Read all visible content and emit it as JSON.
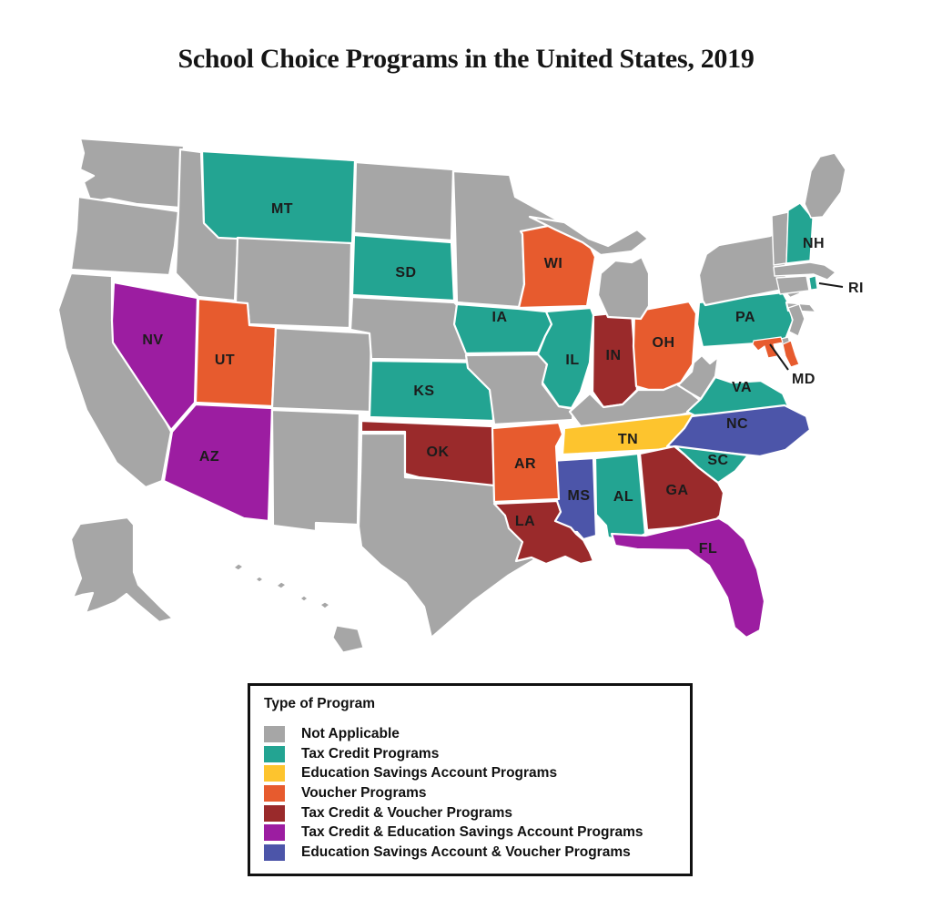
{
  "title": "School Choice Programs in the United States, 2019",
  "legend": {
    "title": "Type of Program",
    "items": [
      {
        "key": "na",
        "label": "Not Applicable",
        "color": "#A6A6A6"
      },
      {
        "key": "tc",
        "label": "Tax Credit Programs",
        "color": "#23A492"
      },
      {
        "key": "esa",
        "label": "Education Savings Account Programs",
        "color": "#FDC42E"
      },
      {
        "key": "voucher",
        "label": "Voucher Programs",
        "color": "#E75B2E"
      },
      {
        "key": "tc_voucher",
        "label": "Tax Credit & Voucher Programs",
        "color": "#9A2A2B"
      },
      {
        "key": "tc_esa",
        "label": "Tax Credit & Education Savings Account Programs",
        "color": "#9C1DA1"
      },
      {
        "key": "esa_voucher",
        "label": "Education Savings Account & Voucher Programs",
        "color": "#4C55A9"
      }
    ]
  },
  "map": {
    "border_color": "#FFFFFF",
    "states": [
      {
        "abbr": "WA",
        "program": "na",
        "label": ""
      },
      {
        "abbr": "OR",
        "program": "na",
        "label": ""
      },
      {
        "abbr": "CA",
        "program": "na",
        "label": ""
      },
      {
        "abbr": "ID",
        "program": "na",
        "label": ""
      },
      {
        "abbr": "MT",
        "program": "tc",
        "label": "MT"
      },
      {
        "abbr": "WY",
        "program": "na",
        "label": ""
      },
      {
        "abbr": "NV",
        "program": "tc_esa",
        "label": "NV"
      },
      {
        "abbr": "UT",
        "program": "voucher",
        "label": "UT"
      },
      {
        "abbr": "AZ",
        "program": "tc_esa",
        "label": "AZ"
      },
      {
        "abbr": "CO",
        "program": "na",
        "label": ""
      },
      {
        "abbr": "NM",
        "program": "na",
        "label": ""
      },
      {
        "abbr": "TX",
        "program": "na",
        "label": ""
      },
      {
        "abbr": "ND",
        "program": "na",
        "label": ""
      },
      {
        "abbr": "SD",
        "program": "tc",
        "label": "SD"
      },
      {
        "abbr": "NE",
        "program": "na",
        "label": ""
      },
      {
        "abbr": "KS",
        "program": "tc",
        "label": "KS"
      },
      {
        "abbr": "OK",
        "program": "tc_voucher",
        "label": "OK"
      },
      {
        "abbr": "MN",
        "program": "na",
        "label": ""
      },
      {
        "abbr": "IA",
        "program": "tc",
        "label": "IA"
      },
      {
        "abbr": "MO",
        "program": "na",
        "label": ""
      },
      {
        "abbr": "WI",
        "program": "voucher",
        "label": "WI"
      },
      {
        "abbr": "IL",
        "program": "tc",
        "label": "IL"
      },
      {
        "abbr": "IN",
        "program": "tc_voucher",
        "label": "IN"
      },
      {
        "abbr": "OH",
        "program": "voucher",
        "label": "OH"
      },
      {
        "abbr": "MI",
        "program": "na",
        "label": ""
      },
      {
        "abbr": "KY",
        "program": "na",
        "label": ""
      },
      {
        "abbr": "TN",
        "program": "esa",
        "label": "TN"
      },
      {
        "abbr": "WV",
        "program": "na",
        "label": ""
      },
      {
        "abbr": "VA",
        "program": "tc",
        "label": "VA"
      },
      {
        "abbr": "NC",
        "program": "esa_voucher",
        "label": "NC"
      },
      {
        "abbr": "SC",
        "program": "tc",
        "label": "SC"
      },
      {
        "abbr": "GA",
        "program": "tc_voucher",
        "label": "GA"
      },
      {
        "abbr": "AL",
        "program": "tc",
        "label": "AL"
      },
      {
        "abbr": "MS",
        "program": "esa_voucher",
        "label": "MS"
      },
      {
        "abbr": "AR",
        "program": "voucher",
        "label": "AR"
      },
      {
        "abbr": "LA",
        "program": "tc_voucher",
        "label": "LA"
      },
      {
        "abbr": "FL",
        "program": "tc_esa",
        "label": "FL"
      },
      {
        "abbr": "PA",
        "program": "tc",
        "label": "PA"
      },
      {
        "abbr": "NY",
        "program": "na",
        "label": ""
      },
      {
        "abbr": "NJ",
        "program": "na",
        "label": ""
      },
      {
        "abbr": "DE",
        "program": "na",
        "label": ""
      },
      {
        "abbr": "MD",
        "program": "voucher",
        "label": ""
      },
      {
        "abbr": "VT",
        "program": "na",
        "label": ""
      },
      {
        "abbr": "NH",
        "program": "tc",
        "label": "NH"
      },
      {
        "abbr": "ME",
        "program": "na",
        "label": ""
      },
      {
        "abbr": "MA",
        "program": "na",
        "label": ""
      },
      {
        "abbr": "CT",
        "program": "na",
        "label": ""
      },
      {
        "abbr": "RI",
        "program": "tc",
        "label": ""
      },
      {
        "abbr": "AK",
        "program": "na",
        "label": ""
      },
      {
        "abbr": "HI",
        "program": "na",
        "label": ""
      }
    ],
    "callouts": [
      {
        "state": "RI",
        "label": "RI"
      },
      {
        "state": "MD",
        "label": "MD"
      }
    ]
  }
}
